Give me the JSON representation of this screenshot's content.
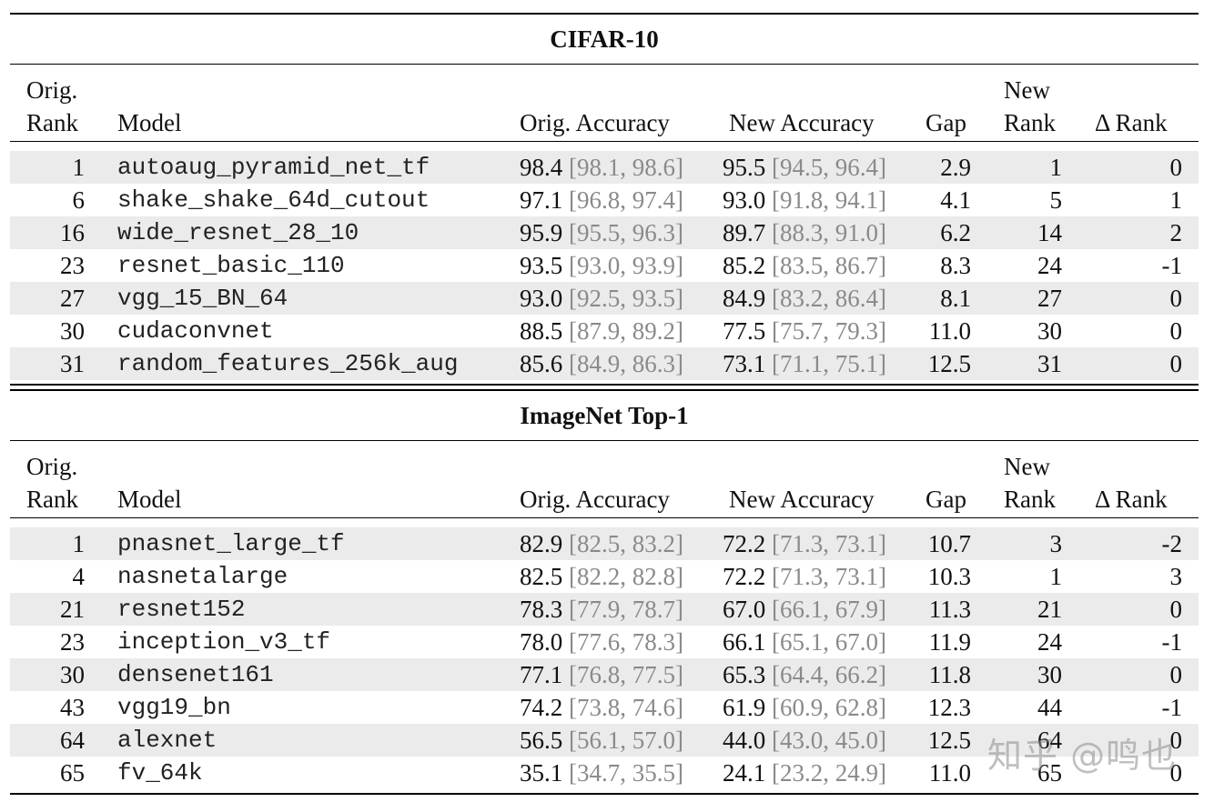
{
  "watermark": "知乎 @鸣也",
  "headers": {
    "orig_rank_line1": "Orig.",
    "orig_rank_line2": "Rank",
    "model": "Model",
    "orig_accuracy": "Orig. Accuracy",
    "new_accuracy": "New Accuracy",
    "gap": "Gap",
    "new_rank_line1": "New",
    "new_rank_line2": "Rank",
    "delta_rank": "Δ Rank"
  },
  "sections": [
    {
      "title": "CIFAR-10",
      "rows": [
        {
          "orig_rank": "1",
          "model": "autoaug_pyramid_net_tf",
          "orig_acc": "98.4",
          "orig_ci": "[98.1, 98.6]",
          "new_acc": "95.5",
          "new_ci": "[94.5, 96.4]",
          "gap": "2.9",
          "new_rank": "1",
          "delta_rank": "0"
        },
        {
          "orig_rank": "6",
          "model": "shake_shake_64d_cutout",
          "orig_acc": "97.1",
          "orig_ci": "[96.8, 97.4]",
          "new_acc": "93.0",
          "new_ci": "[91.8, 94.1]",
          "gap": "4.1",
          "new_rank": "5",
          "delta_rank": "1"
        },
        {
          "orig_rank": "16",
          "model": "wide_resnet_28_10",
          "orig_acc": "95.9",
          "orig_ci": "[95.5, 96.3]",
          "new_acc": "89.7",
          "new_ci": "[88.3, 91.0]",
          "gap": "6.2",
          "new_rank": "14",
          "delta_rank": "2"
        },
        {
          "orig_rank": "23",
          "model": "resnet_basic_110",
          "orig_acc": "93.5",
          "orig_ci": "[93.0, 93.9]",
          "new_acc": "85.2",
          "new_ci": "[83.5, 86.7]",
          "gap": "8.3",
          "new_rank": "24",
          "delta_rank": "-1"
        },
        {
          "orig_rank": "27",
          "model": "vgg_15_BN_64",
          "orig_acc": "93.0",
          "orig_ci": "[92.5, 93.5]",
          "new_acc": "84.9",
          "new_ci": "[83.2, 86.4]",
          "gap": "8.1",
          "new_rank": "27",
          "delta_rank": "0"
        },
        {
          "orig_rank": "30",
          "model": "cudaconvnet",
          "orig_acc": "88.5",
          "orig_ci": "[87.9, 89.2]",
          "new_acc": "77.5",
          "new_ci": "[75.7, 79.3]",
          "gap": "11.0",
          "new_rank": "30",
          "delta_rank": "0"
        },
        {
          "orig_rank": "31",
          "model": "random_features_256k_aug",
          "orig_acc": "85.6",
          "orig_ci": "[84.9, 86.3]",
          "new_acc": "73.1",
          "new_ci": "[71.1, 75.1]",
          "gap": "12.5",
          "new_rank": "31",
          "delta_rank": "0"
        }
      ]
    },
    {
      "title": "ImageNet Top-1",
      "rows": [
        {
          "orig_rank": "1",
          "model": "pnasnet_large_tf",
          "orig_acc": "82.9",
          "orig_ci": "[82.5, 83.2]",
          "new_acc": "72.2",
          "new_ci": "[71.3, 73.1]",
          "gap": "10.7",
          "new_rank": "3",
          "delta_rank": "-2"
        },
        {
          "orig_rank": "4",
          "model": "nasnetalarge",
          "orig_acc": "82.5",
          "orig_ci": "[82.2, 82.8]",
          "new_acc": "72.2",
          "new_ci": "[71.3, 73.1]",
          "gap": "10.3",
          "new_rank": "1",
          "delta_rank": "3"
        },
        {
          "orig_rank": "21",
          "model": "resnet152",
          "orig_acc": "78.3",
          "orig_ci": "[77.9, 78.7]",
          "new_acc": "67.0",
          "new_ci": "[66.1, 67.9]",
          "gap": "11.3",
          "new_rank": "21",
          "delta_rank": "0"
        },
        {
          "orig_rank": "23",
          "model": "inception_v3_tf",
          "orig_acc": "78.0",
          "orig_ci": "[77.6, 78.3]",
          "new_acc": "66.1",
          "new_ci": "[65.1, 67.0]",
          "gap": "11.9",
          "new_rank": "24",
          "delta_rank": "-1"
        },
        {
          "orig_rank": "30",
          "model": "densenet161",
          "orig_acc": "77.1",
          "orig_ci": "[76.8, 77.5]",
          "new_acc": "65.3",
          "new_ci": "[64.4, 66.2]",
          "gap": "11.8",
          "new_rank": "30",
          "delta_rank": "0"
        },
        {
          "orig_rank": "43",
          "model": "vgg19_bn",
          "orig_acc": "74.2",
          "orig_ci": "[73.8, 74.6]",
          "new_acc": "61.9",
          "new_ci": "[60.9, 62.8]",
          "gap": "12.3",
          "new_rank": "44",
          "delta_rank": "-1"
        },
        {
          "orig_rank": "64",
          "model": "alexnet",
          "orig_acc": "56.5",
          "orig_ci": "[56.1, 57.0]",
          "new_acc": "44.0",
          "new_ci": "[43.0, 45.0]",
          "gap": "12.5",
          "new_rank": "64",
          "delta_rank": "0"
        },
        {
          "orig_rank": "65",
          "model": "fv_64k",
          "orig_acc": "35.1",
          "orig_ci": "[34.7, 35.5]",
          "new_acc": "24.1",
          "new_ci": "[23.2, 24.9]",
          "gap": "11.0",
          "new_rank": "65",
          "delta_rank": "0"
        }
      ]
    }
  ]
}
